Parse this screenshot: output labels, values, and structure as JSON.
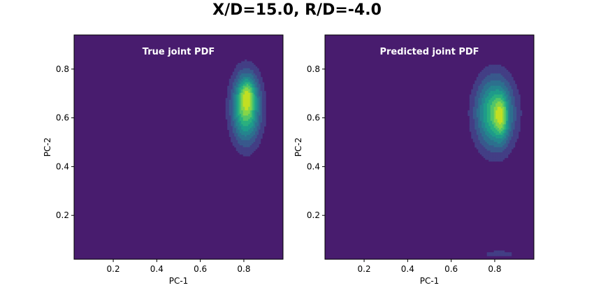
{
  "figure": {
    "title": "X/D=15.0, R/D=-4.0"
  },
  "chart_data": [
    {
      "type": "heatmap",
      "subtype": "filled-contour",
      "title": "True joint PDF",
      "xlabel": "PC-1",
      "ylabel": "PC-2",
      "xlim": [
        0.02,
        0.98
      ],
      "ylim": [
        0.02,
        0.94
      ],
      "xticks": [
        0.2,
        0.4,
        0.6,
        0.8
      ],
      "yticks": [
        0.2,
        0.4,
        0.6,
        0.8
      ],
      "colormap": "viridis",
      "background_color": "#481c6e",
      "blobs": [
        {
          "cx": 0.81,
          "cy": 0.64,
          "sx": 0.045,
          "sy": 0.095,
          "amp": 1.0
        },
        {
          "cx": 0.815,
          "cy": 0.7,
          "sx": 0.025,
          "sy": 0.045,
          "amp": 0.35
        }
      ],
      "levels": 9
    },
    {
      "type": "heatmap",
      "subtype": "filled-contour",
      "title": "Predicted joint PDF",
      "xlabel": "PC-1",
      "ylabel": "PC-2",
      "xlim": [
        0.02,
        0.98
      ],
      "ylim": [
        0.02,
        0.94
      ],
      "xticks": [
        0.2,
        0.4,
        0.6,
        0.8
      ],
      "yticks": [
        0.2,
        0.4,
        0.6,
        0.8
      ],
      "colormap": "viridis",
      "background_color": "#481c6e",
      "blobs": [
        {
          "cx": 0.8,
          "cy": 0.62,
          "sx": 0.06,
          "sy": 0.1,
          "amp": 1.0
        },
        {
          "cx": 0.83,
          "cy": 0.6,
          "sx": 0.02,
          "sy": 0.06,
          "amp": 0.45
        },
        {
          "cx": 0.82,
          "cy": 0.042,
          "sx": 0.05,
          "sy": 0.01,
          "amp": 0.25
        }
      ],
      "levels": 9
    }
  ]
}
